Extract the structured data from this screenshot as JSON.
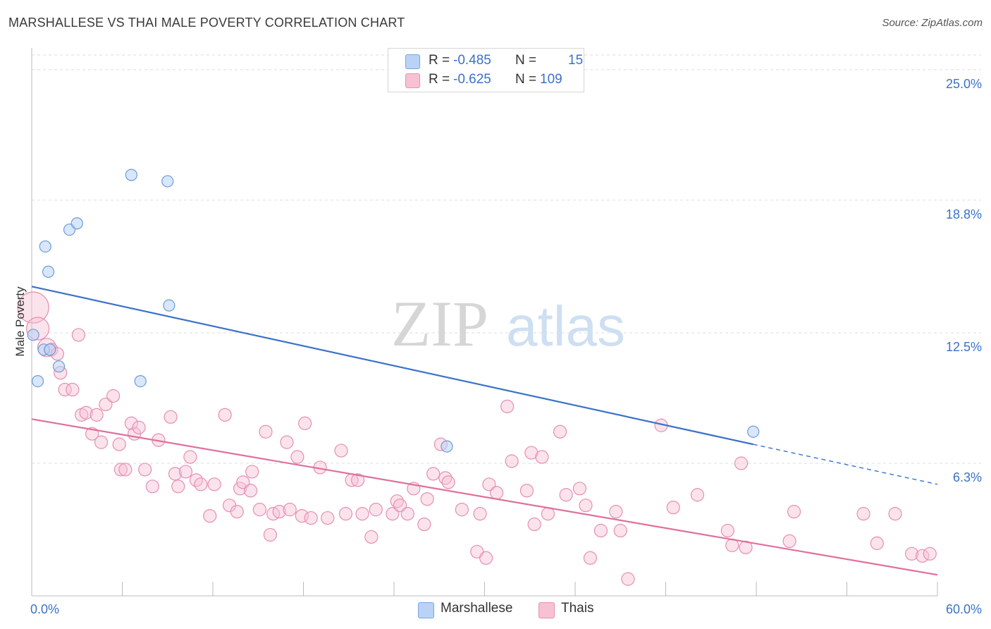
{
  "title": "MARSHALLESE VS THAI MALE POVERTY CORRELATION CHART",
  "source": "Source: ZipAtlas.com",
  "watermark": {
    "part1": "ZIP",
    "part2": "atlas"
  },
  "legend_top": [
    {
      "r_label": "R =",
      "r_value": "-0.485",
      "n_label": "N =",
      "n_value": "15",
      "swatch": "#b8d3f5"
    },
    {
      "r_label": "R =",
      "r_value": "-0.625",
      "n_label": "N =",
      "n_value": "109",
      "swatch": "#f7c1d3"
    }
  ],
  "legend_bottom": [
    {
      "label": "Marshallese",
      "swatch": "#b8d3f5"
    },
    {
      "label": "Thais",
      "swatch": "#f7c1d3"
    }
  ],
  "chart_data": {
    "type": "scatter",
    "xlabel": "",
    "ylabel": "Male Poverty",
    "xlim": [
      0,
      60
    ],
    "ylim": [
      0,
      25.7
    ],
    "x_tick_labels": [
      "0.0%",
      "60.0%"
    ],
    "y_ticks": [
      6.3,
      12.5,
      18.8,
      25.0
    ],
    "y_tick_labels": [
      "6.3%",
      "12.5%",
      "18.8%",
      "25.0%"
    ],
    "colors": {
      "marshallese": "#3a72c8",
      "thais": "#e0709a",
      "tick_label": "#3a72c8"
    },
    "series": [
      {
        "name": "Marshallese",
        "points": [
          [
            0.1,
            12.4
          ],
          [
            0.4,
            10.2
          ],
          [
            0.8,
            11.7
          ],
          [
            0.9,
            16.6
          ],
          [
            1.1,
            15.4
          ],
          [
            1.2,
            11.7
          ],
          [
            1.8,
            10.9
          ],
          [
            2.5,
            17.4
          ],
          [
            3.0,
            17.7
          ],
          [
            6.6,
            20.0
          ],
          [
            7.2,
            10.2
          ],
          [
            9.0,
            19.7
          ],
          [
            9.1,
            13.8
          ],
          [
            27.5,
            7.1
          ],
          [
            47.8,
            7.8
          ]
        ],
        "trend": {
          "x0": 0,
          "y0": 14.7,
          "x1": 47.8,
          "y1": 7.2,
          "dash_to_x": 60,
          "dash_to_y": 5.3
        }
      },
      {
        "name": "Thais",
        "points": [
          [
            0.1,
            13.7
          ],
          [
            0.4,
            12.7
          ],
          [
            1.0,
            11.8
          ],
          [
            1.3,
            11.7
          ],
          [
            1.7,
            11.5
          ],
          [
            1.9,
            10.6
          ],
          [
            2.2,
            9.8
          ],
          [
            2.7,
            9.8
          ],
          [
            3.1,
            12.4
          ],
          [
            3.3,
            8.6
          ],
          [
            3.6,
            8.7
          ],
          [
            4.0,
            7.7
          ],
          [
            4.3,
            8.6
          ],
          [
            4.6,
            7.3
          ],
          [
            4.9,
            9.1
          ],
          [
            5.4,
            9.5
          ],
          [
            5.8,
            7.2
          ],
          [
            5.9,
            6.0
          ],
          [
            6.2,
            6.0
          ],
          [
            6.6,
            8.2
          ],
          [
            6.8,
            7.7
          ],
          [
            7.1,
            8.0
          ],
          [
            7.5,
            6.0
          ],
          [
            8.0,
            5.2
          ],
          [
            8.4,
            7.4
          ],
          [
            9.2,
            8.5
          ],
          [
            9.5,
            5.8
          ],
          [
            9.7,
            5.2
          ],
          [
            10.2,
            5.9
          ],
          [
            10.5,
            6.6
          ],
          [
            10.9,
            5.5
          ],
          [
            11.2,
            5.3
          ],
          [
            11.8,
            3.8
          ],
          [
            12.1,
            5.3
          ],
          [
            12.8,
            8.6
          ],
          [
            13.1,
            4.3
          ],
          [
            13.6,
            4.0
          ],
          [
            13.8,
            5.1
          ],
          [
            14.0,
            5.4
          ],
          [
            14.5,
            5.0
          ],
          [
            14.6,
            5.9
          ],
          [
            15.1,
            4.1
          ],
          [
            15.5,
            7.8
          ],
          [
            15.8,
            2.9
          ],
          [
            16.0,
            3.9
          ],
          [
            16.4,
            4.0
          ],
          [
            16.9,
            7.3
          ],
          [
            17.1,
            4.1
          ],
          [
            17.6,
            6.6
          ],
          [
            17.9,
            3.8
          ],
          [
            18.1,
            8.2
          ],
          [
            18.5,
            3.7
          ],
          [
            19.1,
            6.1
          ],
          [
            19.6,
            3.7
          ],
          [
            20.5,
            6.9
          ],
          [
            20.8,
            3.9
          ],
          [
            21.2,
            5.5
          ],
          [
            21.6,
            5.5
          ],
          [
            21.9,
            3.9
          ],
          [
            22.5,
            2.8
          ],
          [
            22.8,
            4.1
          ],
          [
            23.9,
            3.9
          ],
          [
            24.2,
            4.5
          ],
          [
            24.4,
            4.3
          ],
          [
            24.9,
            3.9
          ],
          [
            25.3,
            5.1
          ],
          [
            26.0,
            3.4
          ],
          [
            26.2,
            4.6
          ],
          [
            26.6,
            5.8
          ],
          [
            27.1,
            7.2
          ],
          [
            27.4,
            5.6
          ],
          [
            27.6,
            5.4
          ],
          [
            28.5,
            4.1
          ],
          [
            29.5,
            2.1
          ],
          [
            29.7,
            3.9
          ],
          [
            30.1,
            1.8
          ],
          [
            30.3,
            5.3
          ],
          [
            30.8,
            4.9
          ],
          [
            31.5,
            9.0
          ],
          [
            31.8,
            6.4
          ],
          [
            32.8,
            5.0
          ],
          [
            33.1,
            6.8
          ],
          [
            33.3,
            3.4
          ],
          [
            33.8,
            6.6
          ],
          [
            34.2,
            3.9
          ],
          [
            35.0,
            7.8
          ],
          [
            35.4,
            4.8
          ],
          [
            36.3,
            5.1
          ],
          [
            36.7,
            4.3
          ],
          [
            37.0,
            1.8
          ],
          [
            37.7,
            3.1
          ],
          [
            38.7,
            4.0
          ],
          [
            39.0,
            3.1
          ],
          [
            39.5,
            0.8
          ],
          [
            41.7,
            8.1
          ],
          [
            42.5,
            4.2
          ],
          [
            44.1,
            4.8
          ],
          [
            46.1,
            3.1
          ],
          [
            46.4,
            2.4
          ],
          [
            47.0,
            6.3
          ],
          [
            47.3,
            2.3
          ],
          [
            50.2,
            2.6
          ],
          [
            50.5,
            4.0
          ],
          [
            55.1,
            3.9
          ],
          [
            56.0,
            2.5
          ],
          [
            57.2,
            3.9
          ],
          [
            58.3,
            2.0
          ],
          [
            59.0,
            1.9
          ],
          [
            59.5,
            2.0
          ]
        ],
        "trend": {
          "x0": 0,
          "y0": 8.4,
          "x1": 60,
          "y1": 1.0
        }
      }
    ]
  }
}
